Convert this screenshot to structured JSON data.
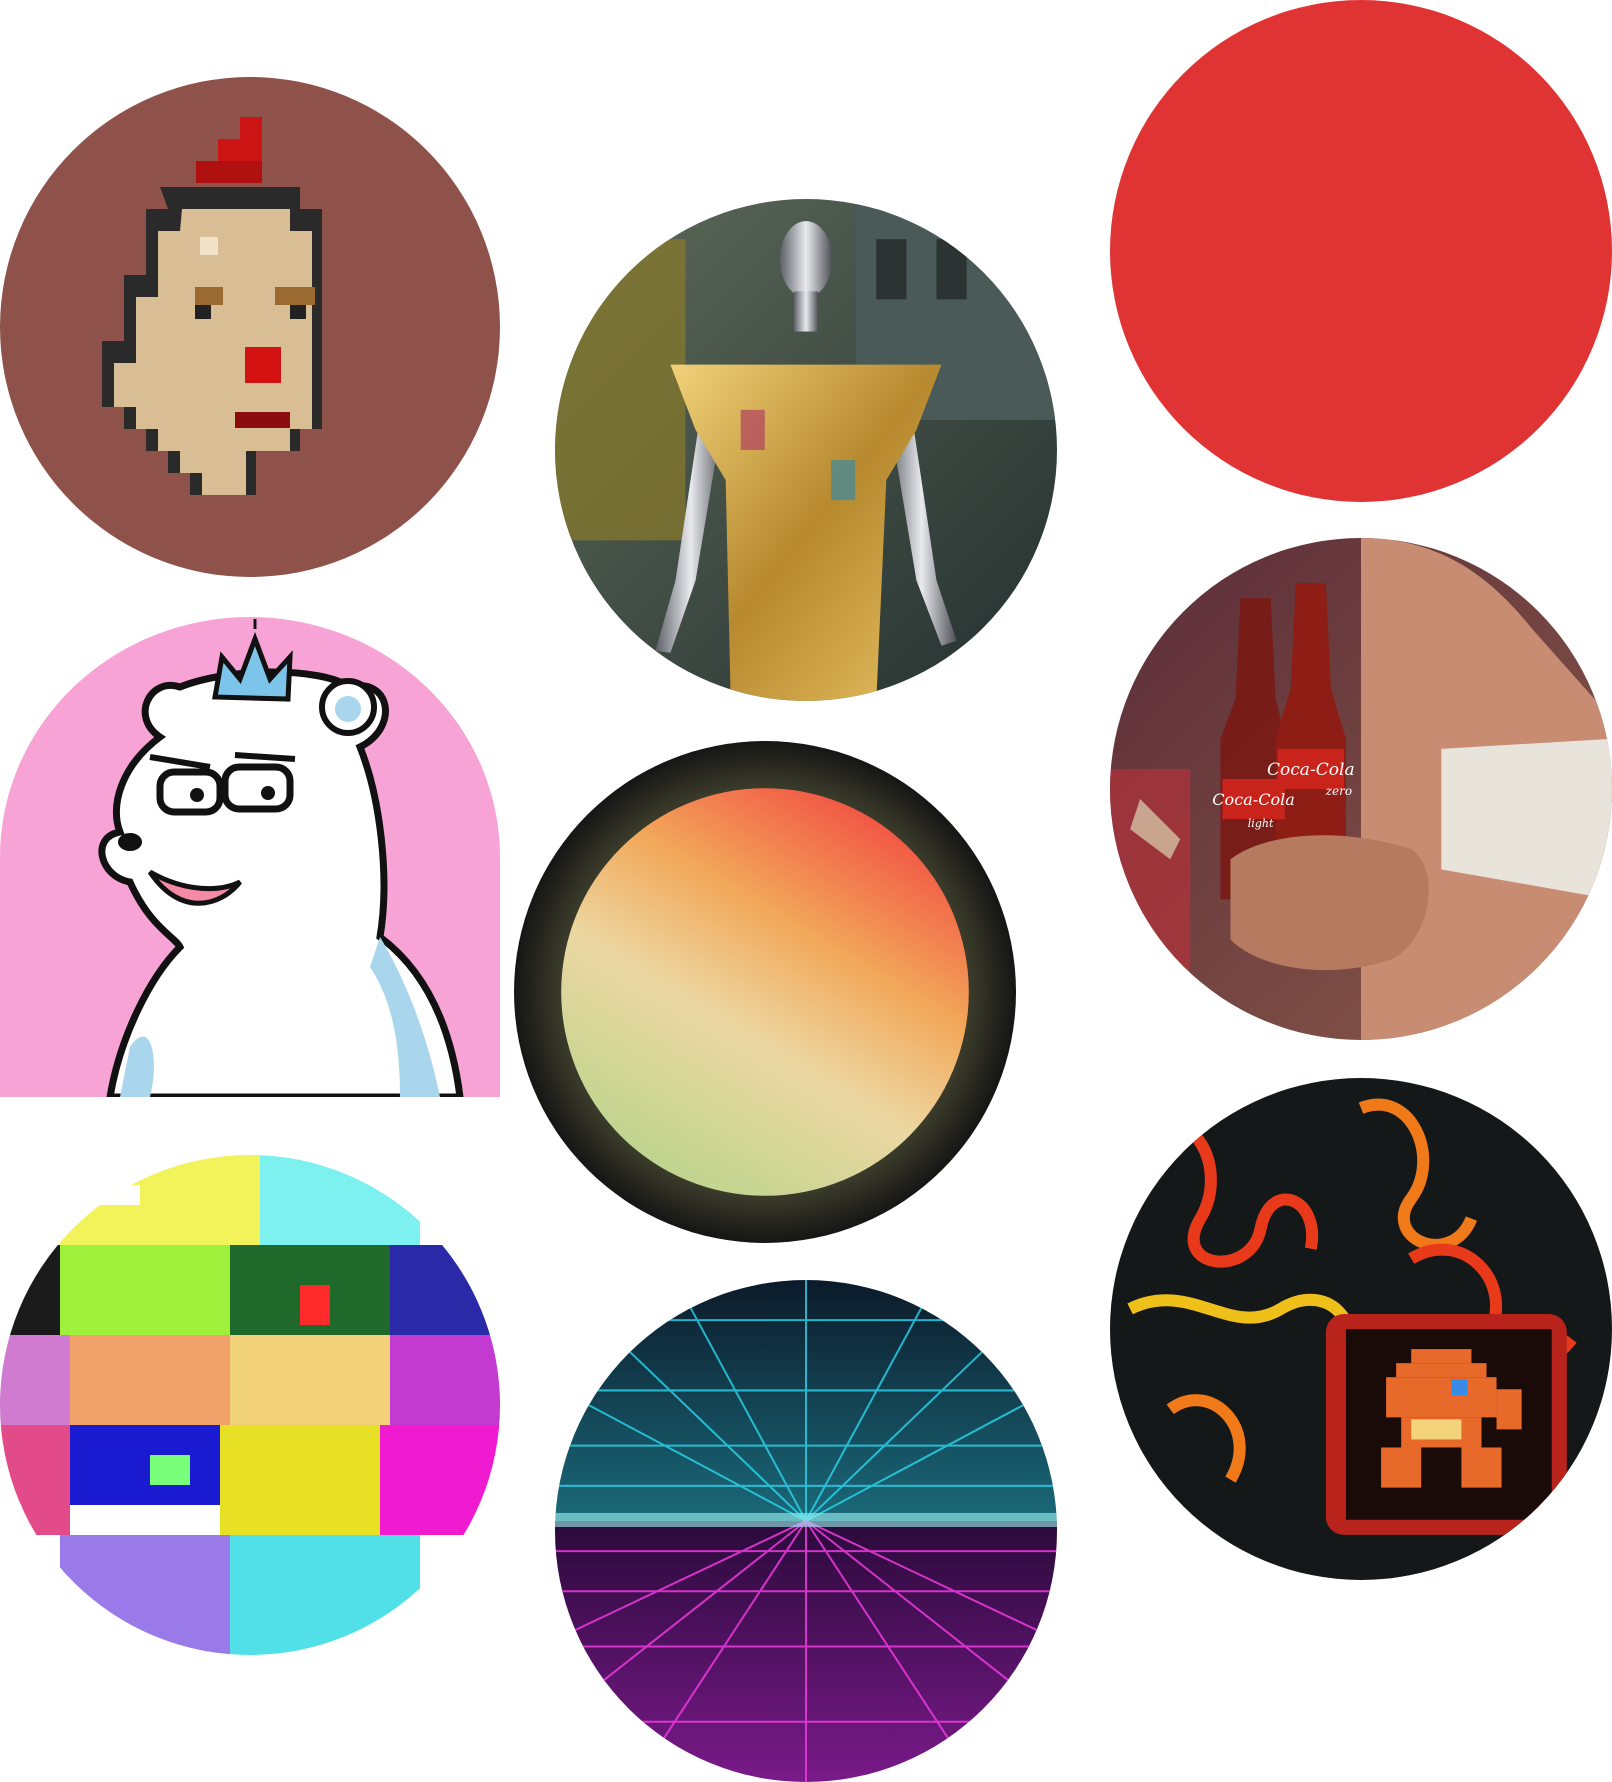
{
  "collage": {
    "items": [
      {
        "name": "voxel-punk-avatar",
        "bg": "#8f524b"
      },
      {
        "name": "chrome-mannequin-gold-dress",
        "bg": "#3a4a48"
      },
      {
        "name": "solid-red-circle",
        "bg": "#e03434"
      },
      {
        "name": "polar-bear-with-crown",
        "bg": "#f7a3d6"
      },
      {
        "name": "gradient-orb",
        "bg": "#111111"
      },
      {
        "name": "coca-cola-bottles-photo",
        "bg": "#6b3540"
      },
      {
        "name": "rgb-glitch-art",
        "bg": "#ffffff"
      },
      {
        "name": "synthwave-neon-grid",
        "bg": "#1a1030"
      },
      {
        "name": "pixel-display-fire-photo",
        "bg": "#151818"
      }
    ]
  },
  "coke": {
    "label_left": "Coca-Cola",
    "label_left_sub": "light",
    "label_right": "Coca-Cola",
    "label_right_sub": "zero"
  }
}
